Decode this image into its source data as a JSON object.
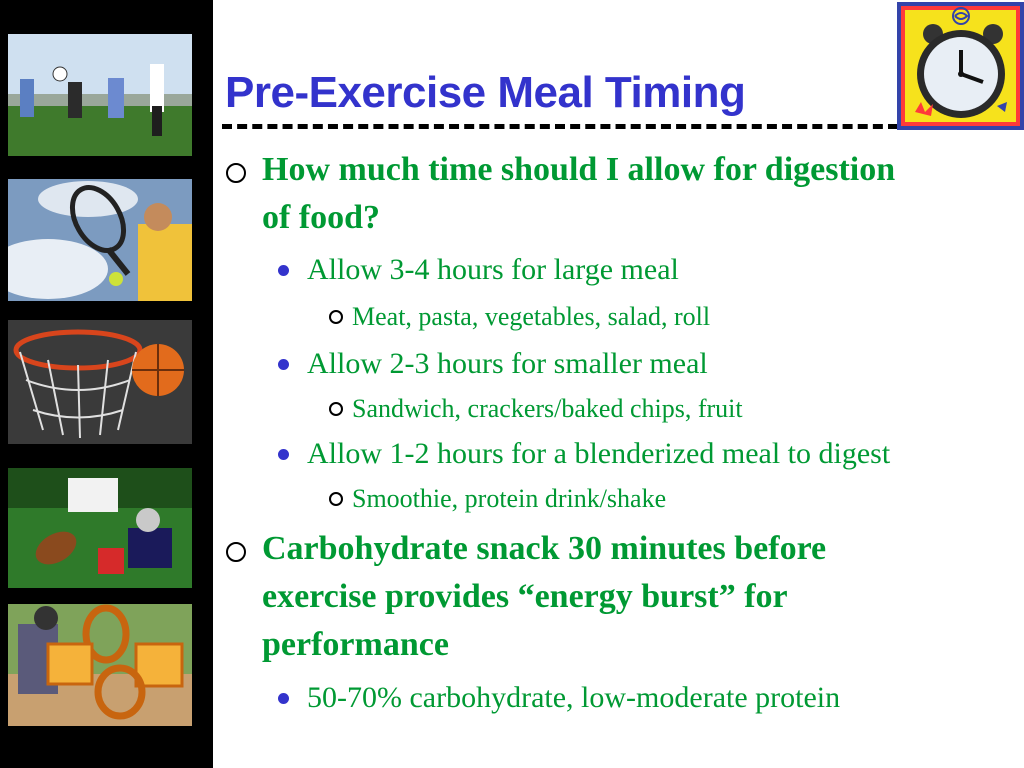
{
  "slide": {
    "title": "Pre-Exercise Meal Timing",
    "bullets": [
      {
        "text_lines": [
          "How much time should I allow for digestion",
          "of food?"
        ]
      },
      {
        "text": "Allow 3-4 hours for large meal"
      },
      {
        "text": "Meat, pasta, vegetables, salad, roll"
      },
      {
        "text": "Allow 2-3 hours for smaller meal"
      },
      {
        "text": "Sandwich, crackers/baked chips, fruit"
      },
      {
        "text": "Allow 1-2 hours for a blenderized meal to digest"
      },
      {
        "text": "Smoothie, protein drink/shake"
      },
      {
        "text_lines": [
          "Carbohydrate snack 30 minutes before",
          "exercise provides “energy burst” for",
          "performance"
        ]
      },
      {
        "text": "50-70% carbohydrate, low-moderate protein"
      }
    ]
  },
  "colors": {
    "title": "#3333cc",
    "body_text": "#009933",
    "sidebar": "#000000",
    "level2_bullet": "#3333cc"
  },
  "images": {
    "sidebar_photos": [
      "soccer-players-photo",
      "tennis-player-photo",
      "basketball-hoop-photo",
      "football-players-photo",
      "baseball-snacks-photo"
    ],
    "corner": "alarm-clock-icon"
  }
}
